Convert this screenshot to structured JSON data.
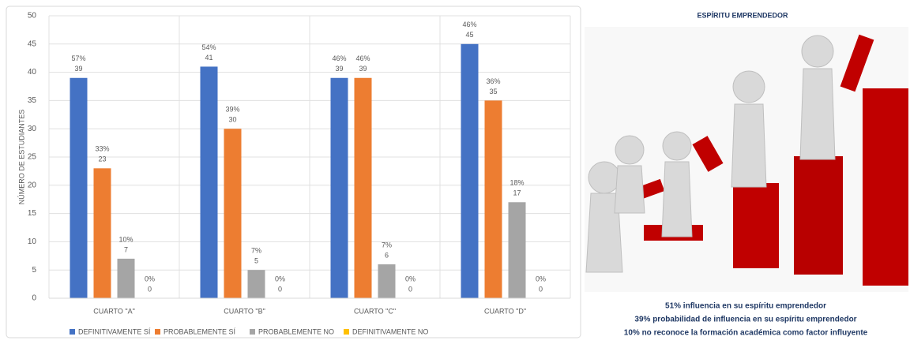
{
  "chart_data": {
    "type": "bar",
    "ylabel": "NÚMERO DE ESTUDIANTES",
    "categories": [
      "CUARTO \"A\"",
      "CUARTO \"B\"",
      "CUARTO \"C\"",
      "CUARTO \"D\""
    ],
    "series": [
      {
        "name": "DEFINITIVAMENTE SÍ",
        "color": "#4472c4",
        "values": [
          39,
          41,
          39,
          45
        ],
        "percentages": [
          "57%",
          "54%",
          "46%",
          "46%"
        ]
      },
      {
        "name": "PROBABLEMENTE SÍ",
        "color": "#ed7d31",
        "values": [
          23,
          30,
          39,
          35
        ],
        "percentages": [
          "33%",
          "39%",
          "46%",
          "36%"
        ]
      },
      {
        "name": "PROBABLEMENTE NO",
        "color": "#a5a5a5",
        "values": [
          7,
          5,
          6,
          17
        ],
        "percentages": [
          "10%",
          "7%",
          "7%",
          "18%"
        ]
      },
      {
        "name": "DEFINITIVAMENTE NO",
        "color": "#ffc000",
        "values": [
          0,
          0,
          0,
          0
        ],
        "percentages": [
          "0%",
          "0%",
          "0%",
          "0%"
        ]
      }
    ],
    "ylim": [
      0,
      50
    ],
    "yticks": [
      0,
      5,
      10,
      15,
      20,
      25,
      30,
      35,
      40,
      45,
      50
    ],
    "grid": true,
    "legend": "bottom"
  },
  "infographic": {
    "title": "ESPÍRITU EMPRENDEDOR",
    "captions": [
      "51% influencia en su espíritu emprendedor",
      "39% probabilidad de influencia en su espíritu emprendedor",
      "10% no reconoce la formación académica como factor influyente"
    ]
  }
}
